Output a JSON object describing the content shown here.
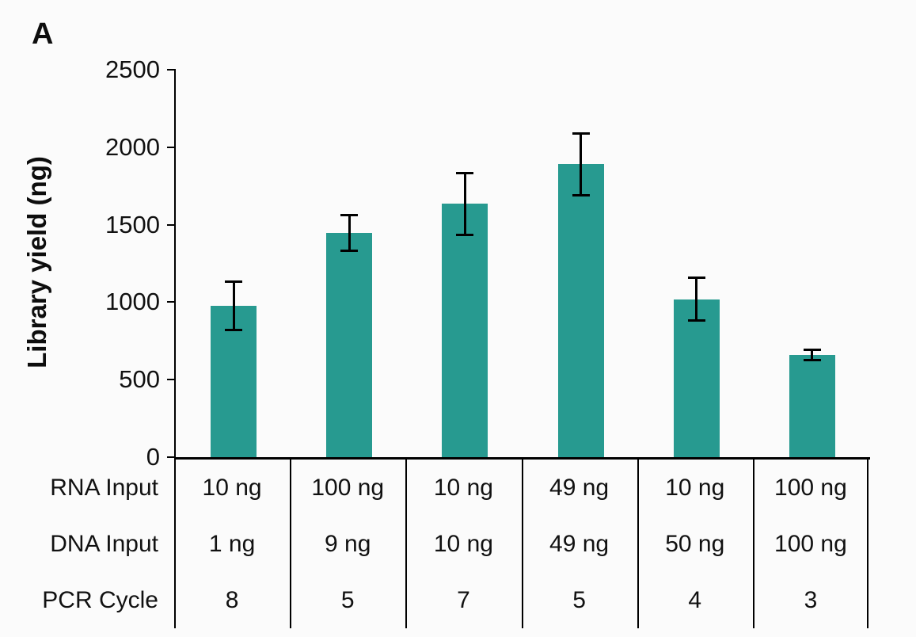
{
  "panel_label": "A",
  "colors": {
    "bar": "#279a90",
    "axis": "#000000",
    "text": "#111111",
    "background": "#fbfbfb"
  },
  "chart_data": {
    "type": "bar",
    "title": "",
    "ylabel": "Library yield (ng)",
    "xlabel": "",
    "ylim": [
      0,
      2500
    ],
    "yticks": [
      0,
      500,
      1000,
      1500,
      2000,
      2500
    ],
    "grid": false,
    "legend_position": "none",
    "bar_color": "#279a90",
    "series": [
      {
        "name": "Library yield",
        "values": [
          975,
          1445,
          1635,
          1890,
          1020,
          660
        ],
        "errors": [
          155,
          115,
          200,
          200,
          140,
          35
        ]
      }
    ],
    "x_table": {
      "row_labels": [
        "RNA Input",
        "DNA Input",
        "PCR Cycle"
      ],
      "rows": [
        [
          "10 ng",
          "100 ng",
          "10 ng",
          "49 ng",
          "10 ng",
          "100 ng"
        ],
        [
          "1 ng",
          "9 ng",
          "10 ng",
          "49 ng",
          "50 ng",
          "100 ng"
        ],
        [
          "8",
          "5",
          "7",
          "5",
          "4",
          "3"
        ]
      ]
    }
  }
}
